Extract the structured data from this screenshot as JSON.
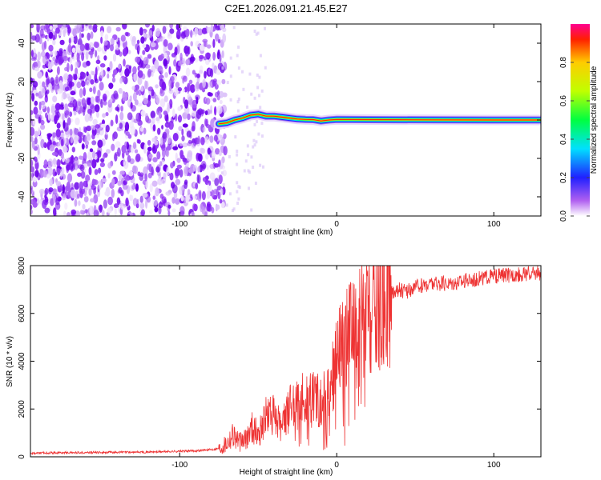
{
  "figure": {
    "title": "C2E1.2026.091.21.45.E27"
  },
  "chart_data": [
    {
      "type": "heatmap",
      "name": "spectrogram",
      "xlabel": "Height of straight line (km)",
      "ylabel": "Frequency (Hz)",
      "xlim": [
        -195,
        130
      ],
      "ylim": [
        -50,
        50
      ],
      "xticks": [
        -100,
        0,
        100
      ],
      "xtick_labels": [
        "-100",
        "0",
        "100"
      ],
      "yticks": [
        -40,
        -20,
        0,
        20,
        40
      ],
      "ytick_labels": [
        "-40",
        "-20",
        "0",
        "20",
        "40"
      ],
      "noise_region_x": [
        -195,
        -75
      ],
      "signal_start_x": -75,
      "signal_center_hz": [
        [
          -75,
          -2
        ],
        [
          -70,
          -1.5
        ],
        [
          -65,
          0
        ],
        [
          -60,
          1
        ],
        [
          -55,
          2.5
        ],
        [
          -50,
          3
        ],
        [
          -45,
          2
        ],
        [
          -40,
          2
        ],
        [
          -35,
          1.5
        ],
        [
          -30,
          1
        ],
        [
          -25,
          0.5
        ],
        [
          -20,
          0.3
        ],
        [
          -15,
          0.2
        ],
        [
          -10,
          -0.5
        ],
        [
          -5,
          0
        ],
        [
          0,
          0.3
        ],
        [
          20,
          0.2
        ],
        [
          60,
          0.1
        ],
        [
          100,
          0
        ],
        [
          130,
          0
        ]
      ],
      "colorbar": {
        "label": "Normalized spectral amplitude",
        "range": [
          0,
          1
        ],
        "ticks": [
          0.0,
          0.2,
          0.4,
          0.6,
          0.8
        ],
        "tick_labels": [
          "0.0",
          "0.2",
          "0.4",
          "0.6",
          "0.8"
        ]
      }
    },
    {
      "type": "line",
      "name": "snr",
      "xlabel": "Height of straight line (km)",
      "ylabel": "SNR (10 * v/v)",
      "xlim": [
        -195,
        130
      ],
      "ylim": [
        0,
        8000
      ],
      "xticks": [
        -100,
        0,
        100
      ],
      "xtick_labels": [
        "-100",
        "0",
        "100"
      ],
      "yticks": [
        0,
        2000,
        4000,
        6000,
        8000
      ],
      "ytick_labels": [
        "0",
        "2000",
        "4000",
        "6000",
        "8000"
      ],
      "color": "#ee3333",
      "series": [
        {
          "name": "SNR",
          "x": [
            -195,
            -180,
            -160,
            -140,
            -120,
            -100,
            -90,
            -80,
            -75,
            -70,
            -66,
            -62,
            -58,
            -54,
            -50,
            -46,
            -42,
            -38,
            -34,
            -30,
            -26,
            -22,
            -18,
            -14,
            -10,
            -6,
            -2,
            0,
            4,
            8,
            12,
            16,
            20,
            24,
            28,
            32,
            36,
            40,
            44,
            50,
            60,
            70,
            80,
            90,
            100,
            110,
            120,
            130
          ],
          "y": [
            150,
            170,
            180,
            190,
            200,
            230,
            250,
            300,
            350,
            600,
            1000,
            600,
            700,
            1300,
            900,
            1600,
            1800,
            1500,
            1400,
            2000,
            2200,
            2400,
            2300,
            2600,
            2200,
            2900,
            3600,
            4000,
            4500,
            5000,
            5200,
            5800,
            5600,
            6000,
            6200,
            6600,
            6900,
            7000,
            6900,
            7100,
            7250,
            7250,
            7350,
            7450,
            7550,
            7600,
            7650,
            7700
          ]
        }
      ]
    }
  ]
}
